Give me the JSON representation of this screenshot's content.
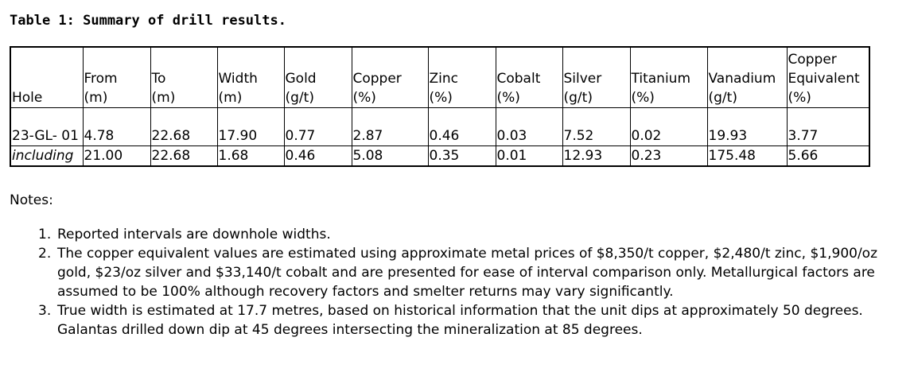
{
  "title": "Table 1: Summary of drill results.",
  "table": {
    "headers": [
      "Hole",
      "From\n(m)",
      "To\n(m)",
      "Width\n(m)",
      "Gold\n(g/t)",
      "Copper\n(%)",
      "Zinc\n(%)",
      "Cobalt\n(%)",
      "Silver\n(g/t)",
      "Titanium\n(%)",
      "Vanadium\n(g/t)",
      "Copper\nEquivalent\n(%)"
    ],
    "rows": [
      [
        "23-GL-\n01",
        "4.78",
        "22.68",
        "17.90",
        "0.77",
        "2.87",
        "0.46",
        "0.03",
        "7.52",
        "0.02",
        "19.93",
        "3.77"
      ],
      [
        "including",
        "21.00",
        "22.68",
        "1.68",
        "0.46",
        "5.08",
        "0.35",
        "0.01",
        "12.93",
        "0.23",
        "175.48",
        "5.66"
      ]
    ]
  },
  "notes": {
    "label": "Notes:",
    "items": [
      {
        "num": "1.",
        "text": "Reported intervals are downhole widths."
      },
      {
        "num": "2.",
        "text": "The copper equivalent values are estimated using approximate metal prices of $8,350/t copper, $2,480/t zinc, $1,900/oz gold, $23/oz silver and $33,140/t cobalt and are presented for ease of interval comparison only. Metallurgical factors are assumed to be 100% although recovery factors and smelter returns may vary significantly."
      },
      {
        "num": "3.",
        "text": "True width is estimated at 17.7 metres, based on historical information that the unit dips at approximately 50 degrees. Galantas drilled down dip at 45 degrees intersecting the mineralization at 85 degrees."
      }
    ]
  }
}
